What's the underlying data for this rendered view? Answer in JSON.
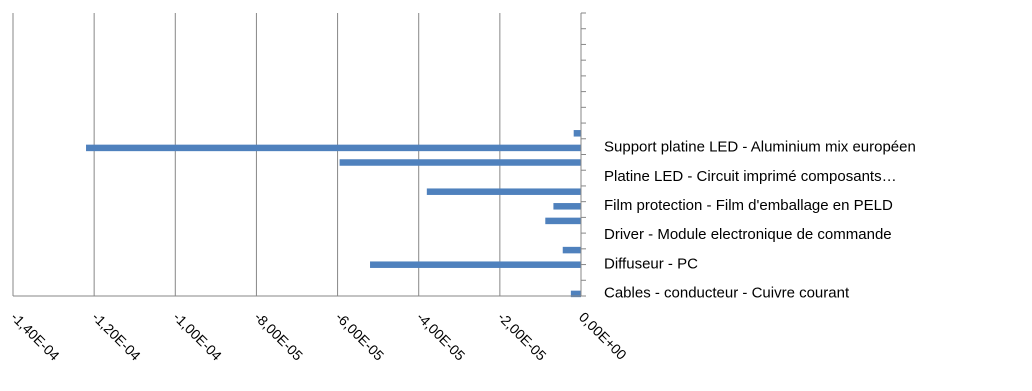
{
  "chart_data": {
    "type": "bar",
    "orientation": "horizontal",
    "x_ticks": [
      "-1,40E-04",
      "-1,20E-04",
      "-1,00E-04",
      "-8,00E-05",
      "-6,00E-05",
      "-4,00E-05",
      "-2,00E-05",
      "0,00E+00"
    ],
    "xlim": [
      -0.00014,
      0
    ],
    "grid": true,
    "legend": "none",
    "bar_color": "#4f81bd",
    "row_count": 18,
    "bars": [
      {
        "row": 11,
        "value": -1.8e-06
      },
      {
        "row": 12,
        "value": -0.000122
      },
      {
        "row": 13,
        "value": -5.95e-05
      },
      {
        "row": 14,
        "value": 0
      },
      {
        "row": 15,
        "value": -3.8e-05
      },
      {
        "row": 16,
        "value": -6.8e-06
      },
      {
        "row": 17,
        "value": -8.8e-06
      },
      {
        "row": 18,
        "value": 0
      },
      {
        "row": 19,
        "value": -4.5e-06
      },
      {
        "row": 20,
        "value": -5.2e-05
      },
      {
        "row": 21,
        "value": 0
      },
      {
        "row": 22,
        "value": -2.5e-06
      }
    ],
    "category_labels": [
      {
        "row": 12,
        "text": "Support platine LED - Aluminium mix européen"
      },
      {
        "row": 14,
        "text": "Platine LED - Circuit imprimé composants…"
      },
      {
        "row": 16,
        "text": "Film protection - Film d'emballage en PELD"
      },
      {
        "row": 18,
        "text": "Driver - Module electronique de commande"
      },
      {
        "row": 20,
        "text": "Diffuseur - PC"
      },
      {
        "row": 22,
        "text": "Cables - conducteur - Cuivre courant"
      }
    ]
  }
}
